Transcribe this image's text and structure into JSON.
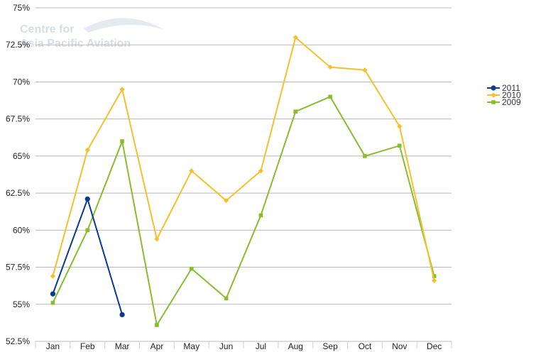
{
  "watermark": {
    "line1": "Centre for",
    "line2": "Asia Pacific Aviation"
  },
  "chart_data": {
    "type": "line",
    "title": "",
    "xlabel": "",
    "ylabel": "",
    "categories": [
      "Jan",
      "Feb",
      "Mar",
      "Apr",
      "May",
      "Jun",
      "Jul",
      "Aug",
      "Sep",
      "Oct",
      "Nov",
      "Dec"
    ],
    "ylim": [
      52.5,
      75
    ],
    "yticks": [
      52.5,
      55,
      57.5,
      60,
      62.5,
      65,
      67.5,
      70,
      72.5,
      75
    ],
    "ytick_labels": [
      "52.5%",
      "55%",
      "57.5%",
      "60%",
      "62.5%",
      "65%",
      "67.5%",
      "70%",
      "72.5%",
      "75%"
    ],
    "grid": true,
    "legend_position": "right",
    "series": [
      {
        "name": "2011",
        "color": "#0a3a8f",
        "marker": "circle",
        "values": [
          55.7,
          62.1,
          54.3,
          null,
          null,
          null,
          null,
          null,
          null,
          null,
          null,
          null
        ]
      },
      {
        "name": "2010",
        "color": "#f5c02c",
        "marker": "diamond",
        "values": [
          56.9,
          65.4,
          69.5,
          59.4,
          64.0,
          62.0,
          64.0,
          73.0,
          71.0,
          70.8,
          67.0,
          56.6
        ]
      },
      {
        "name": "2009",
        "color": "#86bd2d",
        "marker": "square",
        "values": [
          55.1,
          60.0,
          66.0,
          53.6,
          57.4,
          55.4,
          61.0,
          68.0,
          69.0,
          65.0,
          65.7,
          56.9
        ]
      }
    ]
  }
}
